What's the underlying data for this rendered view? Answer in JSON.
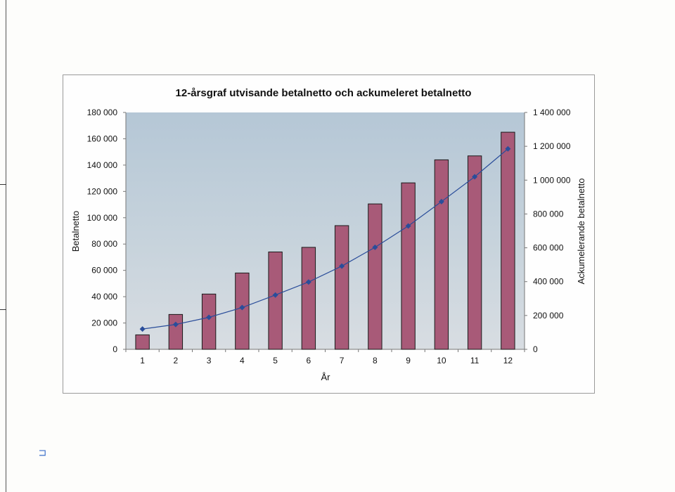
{
  "chart_data": {
    "type": "bar+line",
    "title": "12-årsgraf utvisande betalnetto och ackumeleret betalnetto",
    "xlabel": "År",
    "ylabel_left": "Betalnetto",
    "ylabel_right": "Ackumelerande betalnetto",
    "categories": [
      "1",
      "2",
      "3",
      "4",
      "5",
      "6",
      "7",
      "8",
      "9",
      "10",
      "11",
      "12"
    ],
    "ylim_left": [
      0,
      180000
    ],
    "ylim_right": [
      0,
      1400000
    ],
    "yticks_left": [
      "0",
      "20 000",
      "40 000",
      "60 000",
      "80 000",
      "100 000",
      "120 000",
      "140 000",
      "160 000",
      "180 000"
    ],
    "yticks_right": [
      "0",
      "200 000",
      "400 000",
      "600 000",
      "800 000",
      "1 000 000",
      "1 200 000",
      "1 400 000"
    ],
    "series": [
      {
        "kind": "bar",
        "axis": "left",
        "color": "#a85a78",
        "values": [
          11000,
          26500,
          42000,
          58000,
          74000,
          77500,
          94000,
          110500,
          126500,
          144000,
          147000,
          165000
        ]
      },
      {
        "kind": "line",
        "axis": "right",
        "color": "#2a4d9a",
        "values": [
          120000,
          147000,
          189000,
          247000,
          321000,
          398000,
          492000,
          603000,
          729000,
          873000,
          1020000,
          1185000
        ]
      }
    ],
    "grid": false,
    "legend": "none"
  }
}
